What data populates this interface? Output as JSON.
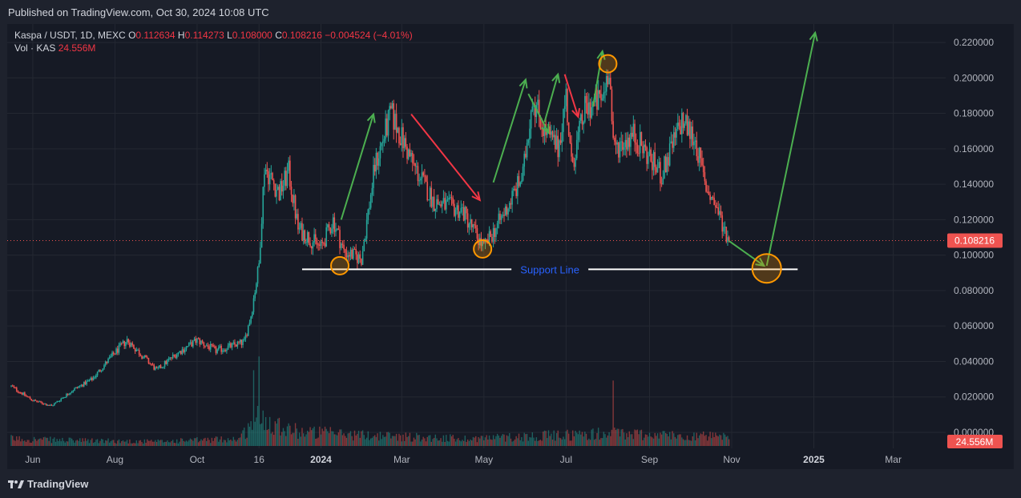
{
  "header": {
    "published": "Published on TradingView.com, Oct 30, 2024 10:08 UTC"
  },
  "legend": {
    "symbol": "Kaspa / USDT, 1D, MEXC",
    "open_label": "O",
    "open": "0.112634",
    "high_label": "H",
    "high": "0.114273",
    "low_label": "L",
    "low": "0.108000",
    "close_label": "C",
    "close": "0.108216",
    "change": "−0.004524 (−4.01%)",
    "vol_label": "Vol · KAS",
    "vol": "24.556M"
  },
  "footer": {
    "brand": "TradingView"
  },
  "colors": {
    "up": "#26a69a",
    "down": "#ef5350",
    "background": "#161a25",
    "grid": "#242832",
    "arrow_up": "#4caf50",
    "arrow_down": "#f23645",
    "marker": "#ff9800",
    "support": "#ffffff",
    "support_label": "#2962ff"
  },
  "chart_data": {
    "type": "candlestick",
    "title": "Kaspa / USDT, 1D, MEXC",
    "y_axis": {
      "ticks": [
        "0.220000",
        "0.200000",
        "0.180000",
        "0.160000",
        "0.140000",
        "0.120000",
        "0.100000",
        "0.080000",
        "0.060000",
        "0.040000",
        "0.020000",
        "0.000000"
      ],
      "ylim": [
        0,
        0.22
      ],
      "last_price": "0.108216",
      "last_volume": "24.556M"
    },
    "x_axis": {
      "ticks": [
        {
          "label": "Jun",
          "date": "2023-06-01",
          "bold": false
        },
        {
          "label": "Aug",
          "date": "2023-08-01",
          "bold": false
        },
        {
          "label": "Oct",
          "date": "2023-10-01",
          "bold": false
        },
        {
          "label": "16",
          "date": "2023-11-16",
          "bold": false
        },
        {
          "label": "2024",
          "date": "2024-01-01",
          "bold": true
        },
        {
          "label": "Mar",
          "date": "2024-03-01",
          "bold": false
        },
        {
          "label": "May",
          "date": "2024-05-01",
          "bold": false
        },
        {
          "label": "Jul",
          "date": "2024-07-01",
          "bold": false
        },
        {
          "label": "Sep",
          "date": "2024-09-01",
          "bold": false
        },
        {
          "label": "Nov",
          "date": "2024-11-01",
          "bold": false
        },
        {
          "label": "2025",
          "date": "2025-01-01",
          "bold": true
        },
        {
          "label": "Mar",
          "date": "2025-03-01",
          "bold": false
        }
      ]
    },
    "price_path": [
      [
        "2023-05-16",
        0.026
      ],
      [
        "2023-06-01",
        0.018
      ],
      [
        "2023-06-15",
        0.015
      ],
      [
        "2023-07-01",
        0.024
      ],
      [
        "2023-07-15",
        0.03
      ],
      [
        "2023-08-01",
        0.045
      ],
      [
        "2023-08-10",
        0.052
      ],
      [
        "2023-09-01",
        0.035
      ],
      [
        "2023-09-15",
        0.044
      ],
      [
        "2023-10-01",
        0.052
      ],
      [
        "2023-10-15",
        0.046
      ],
      [
        "2023-11-05",
        0.051
      ],
      [
        "2023-11-10",
        0.066
      ],
      [
        "2023-11-16",
        0.095
      ],
      [
        "2023-11-20",
        0.15
      ],
      [
        "2023-12-01",
        0.135
      ],
      [
        "2023-12-08",
        0.147
      ],
      [
        "2023-12-15",
        0.115
      ],
      [
        "2024-01-01",
        0.104
      ],
      [
        "2024-01-10",
        0.12
      ],
      [
        "2024-01-18",
        0.102
      ],
      [
        "2024-01-31",
        0.098
      ],
      [
        "2024-02-10",
        0.15
      ],
      [
        "2024-02-22",
        0.18
      ],
      [
        "2024-03-10",
        0.15
      ],
      [
        "2024-03-25",
        0.13
      ],
      [
        "2024-04-15",
        0.125
      ],
      [
        "2024-05-01",
        0.104
      ],
      [
        "2024-05-15",
        0.122
      ],
      [
        "2024-05-30",
        0.145
      ],
      [
        "2024-06-06",
        0.19
      ],
      [
        "2024-06-15",
        0.17
      ],
      [
        "2024-06-25",
        0.16
      ],
      [
        "2024-07-01",
        0.19
      ],
      [
        "2024-07-05",
        0.15
      ],
      [
        "2024-07-15",
        0.182
      ],
      [
        "2024-07-28",
        0.188
      ],
      [
        "2024-08-02",
        0.208
      ],
      [
        "2024-08-05",
        0.16
      ],
      [
        "2024-08-20",
        0.168
      ],
      [
        "2024-09-10",
        0.145
      ],
      [
        "2024-09-25",
        0.176
      ],
      [
        "2024-10-05",
        0.165
      ],
      [
        "2024-10-12",
        0.14
      ],
      [
        "2024-10-20",
        0.128
      ],
      [
        "2024-10-30",
        0.108
      ]
    ],
    "volume_path": [
      [
        "2023-05-16",
        2
      ],
      [
        "2023-07-01",
        1.5
      ],
      [
        "2023-09-01",
        1.2
      ],
      [
        "2023-11-01",
        2
      ],
      [
        "2023-11-16",
        8
      ],
      [
        "2023-12-15",
        4
      ],
      [
        "2024-02-01",
        3
      ],
      [
        "2024-04-15",
        2
      ],
      [
        "2024-08-05",
        3.5
      ],
      [
        "2024-10-30",
        2.4
      ]
    ],
    "volume_spikes": [
      [
        "2023-11-12",
        22
      ],
      [
        "2023-11-16",
        26
      ],
      [
        "2024-08-05",
        19
      ]
    ],
    "annotations": {
      "support_line": {
        "label": "Support Line",
        "price": 0.092,
        "from": "2023-12-18",
        "to": "2024-12-20"
      },
      "circle_markers": [
        {
          "date": "2024-01-15",
          "price": 0.094,
          "size": "small"
        },
        {
          "date": "2024-04-30",
          "price": 0.1035,
          "size": "small"
        },
        {
          "date": "2024-08-01",
          "price": 0.208,
          "size": "small"
        },
        {
          "date": "2024-11-27",
          "price": 0.0925,
          "size": "large"
        }
      ],
      "arrows": [
        {
          "color": "green",
          "from": [
            "2024-01-16",
            0.12
          ],
          "to": [
            "2024-02-09",
            0.1795
          ]
        },
        {
          "color": "red",
          "from": [
            "2024-03-08",
            0.1795
          ],
          "to": [
            "2024-04-28",
            0.131
          ]
        },
        {
          "color": "green",
          "from": [
            "2024-05-08",
            0.141
          ],
          "to": [
            "2024-06-01",
            0.199
          ]
        },
        {
          "color": "green",
          "from": [
            "2024-06-03",
            0.191
          ],
          "to": [
            "2024-06-18",
            0.169
          ]
        },
        {
          "color": "green",
          "from": [
            "2024-06-15",
            0.175
          ],
          "to": [
            "2024-06-25",
            0.202
          ]
        },
        {
          "color": "red",
          "from": [
            "2024-06-30",
            0.202
          ],
          "to": [
            "2024-07-10",
            0.178
          ]
        },
        {
          "color": "green",
          "from": [
            "2024-07-21",
            0.184
          ],
          "to": [
            "2024-07-28",
            0.215
          ]
        },
        {
          "color": "green",
          "from": [
            "2024-10-30",
            0.108
          ],
          "to": [
            "2024-11-25",
            0.094
          ]
        },
        {
          "color": "green",
          "from": [
            "2024-11-27",
            0.094
          ],
          "to": [
            "2025-01-02",
            0.2255
          ]
        }
      ]
    }
  }
}
